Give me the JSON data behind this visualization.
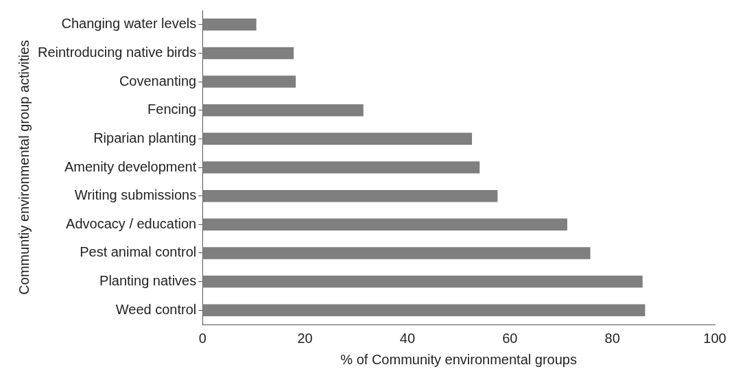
{
  "chart_data": {
    "type": "bar",
    "orientation": "horizontal",
    "categories": [
      "Changing water levels",
      "Reintroducing native birds",
      "Covenanting",
      "Fencing",
      "Riparian planting",
      "Amenity development",
      "Writing submissions",
      "Advocacy / education",
      "Pest animal control",
      "Planting natives",
      "Weed control"
    ],
    "values": [
      10.5,
      17.8,
      18.2,
      31.4,
      52.6,
      54.1,
      57.6,
      71.2,
      75.7,
      85.9,
      86.4
    ],
    "color": "#7f7f7f",
    "xlabel": "% of Community environmental groups",
    "ylabel": "Communtiy environmental group activities",
    "xlim": [
      0,
      100
    ],
    "xticks": [
      0,
      20,
      40,
      60,
      80,
      100
    ],
    "grid": false,
    "legend": false
  }
}
